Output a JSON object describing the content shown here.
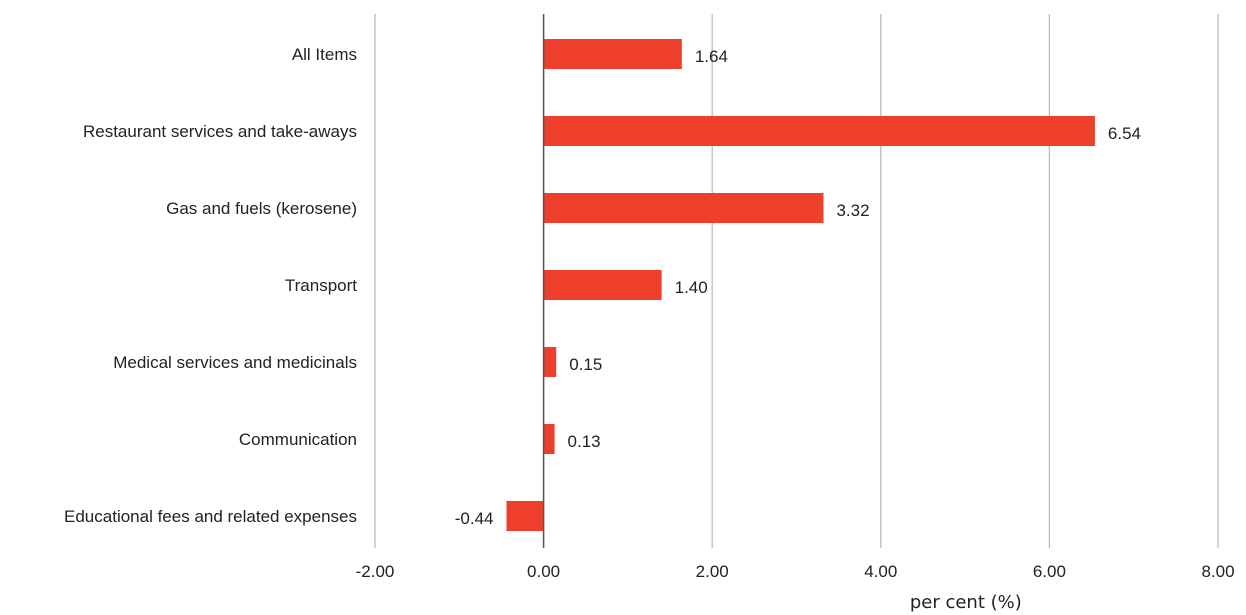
{
  "chart_data": {
    "type": "bar",
    "orientation": "horizontal",
    "categories": [
      "All Items",
      "Restaurant services and take-aways",
      "Gas and fuels (kerosene)",
      "Transport",
      "Medical services and medicinals",
      "Communication",
      "Educational fees and related expenses"
    ],
    "values": [
      1.64,
      6.54,
      3.32,
      1.4,
      0.15,
      0.13,
      -0.44
    ],
    "value_labels": [
      "1.64",
      "6.54",
      "3.32",
      "1.40",
      "0.15",
      "0.13",
      "-0.44"
    ],
    "xlabel": "per cent (%)",
    "xlim": [
      -2,
      8
    ],
    "xticks": [
      "-2.00",
      "0.00",
      "2.00",
      "4.00",
      "6.00",
      "8.00"
    ],
    "xtick_values": [
      -2,
      0,
      2,
      4,
      6,
      8
    ],
    "grid": "vertical",
    "bar_color": "#ee3f2d",
    "grid_color": "#bdbdbd",
    "axis_color": "#555555"
  }
}
